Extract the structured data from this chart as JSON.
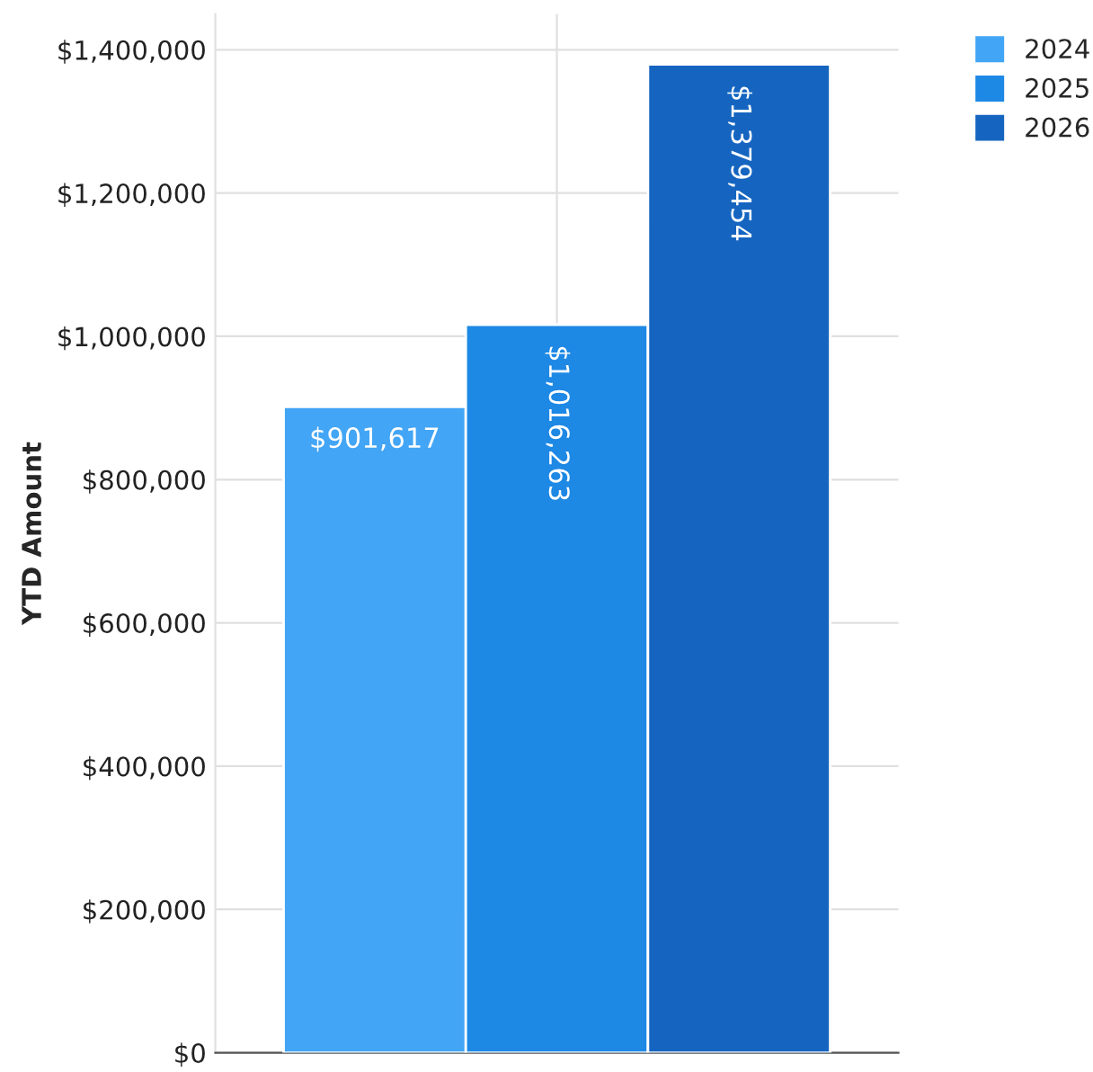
{
  "chart_data": {
    "type": "bar",
    "ylabel": "YTD Amount",
    "categories": [
      null
    ],
    "series": [
      {
        "name": "2024",
        "color": "#42a5f5",
        "values": [
          901617
        ],
        "value_labels": [
          "$901,617"
        ]
      },
      {
        "name": "2025",
        "color": "#1e88e5",
        "values": [
          1016263
        ],
        "value_labels": [
          "$1,016,263"
        ]
      },
      {
        "name": "2026",
        "color": "#1565c0",
        "values": [
          1379454
        ],
        "value_labels": [
          "$1,379,454"
        ]
      }
    ],
    "ylim": [
      0,
      1450000
    ],
    "yticks": [
      {
        "value": 0,
        "label": "$0"
      },
      {
        "value": 200000,
        "label": "$200,000"
      },
      {
        "value": 400000,
        "label": "$400,000"
      },
      {
        "value": 600000,
        "label": "$600,000"
      },
      {
        "value": 800000,
        "label": "$800,000"
      },
      {
        "value": 1000000,
        "label": "$1,000,000"
      },
      {
        "value": 1200000,
        "label": "$1,200,000"
      },
      {
        "value": 1400000,
        "label": "$1,400,000"
      }
    ],
    "grid": true,
    "legend": "top right"
  }
}
